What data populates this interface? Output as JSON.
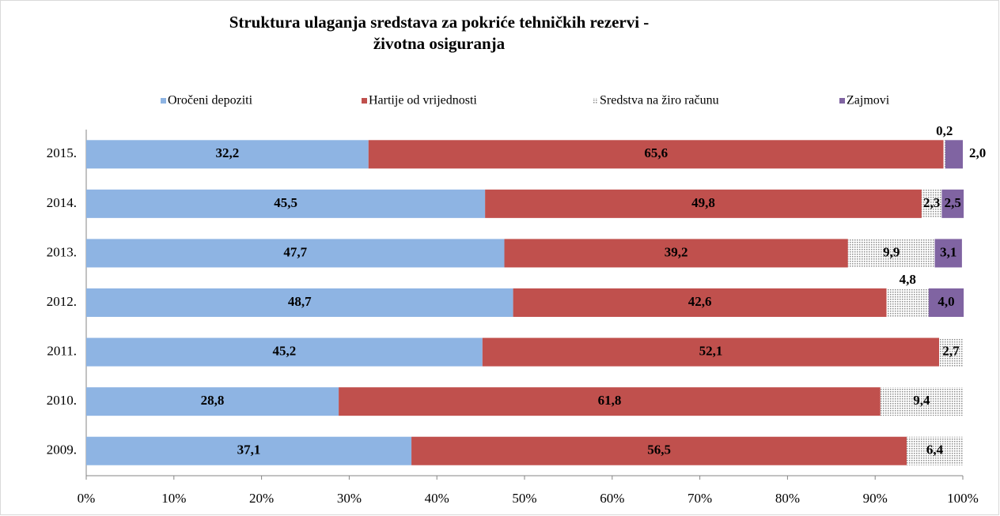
{
  "chart_data": {
    "type": "stacked_bar_horizontal",
    "title": "Struktura  ulaganja  sredstava za pokriće  tehničkih  rezervi -",
    "subtitle": "životna osiguranja",
    "categories": [
      "2015.",
      "2014.",
      "2013.",
      "2012.",
      "2011.",
      "2010.",
      "2009."
    ],
    "series": [
      {
        "name": "Oročeni depoziti",
        "color": "#8eb4e3",
        "values": [
          32.2,
          45.5,
          47.7,
          48.7,
          45.2,
          28.8,
          37.1
        ],
        "value_labels": [
          "32,2",
          "45,5",
          "47,7",
          "48,7",
          "45,2",
          "28,8",
          "37,1"
        ]
      },
      {
        "name": "Hartije od vrijednosti",
        "color": "#c0504d",
        "values": [
          65.6,
          49.8,
          39.2,
          42.6,
          52.1,
          61.8,
          56.5
        ],
        "value_labels": [
          "65,6",
          "49,8",
          "39,2",
          "42,6",
          "52,1",
          "61,8",
          "56,5"
        ]
      },
      {
        "name": "Sredstva na žiro računu",
        "color": "#a6a6a6",
        "pattern": "dots",
        "values": [
          0.2,
          2.3,
          9.9,
          4.8,
          2.7,
          9.4,
          6.4
        ],
        "value_labels": [
          "0,2",
          "2,3",
          "9,9",
          "4,8",
          "2,7",
          "9,4",
          "6,4"
        ]
      },
      {
        "name": "Zajmovi",
        "color": "#8064a2",
        "values": [
          2.0,
          2.5,
          3.1,
          4.0,
          null,
          null,
          null
        ],
        "value_labels": [
          "2,0",
          "2,5",
          "3,1",
          "4,0",
          null,
          null,
          null
        ]
      }
    ],
    "xlim": [
      0,
      100
    ],
    "xticks": [
      {
        "value": 0,
        "label": "0%"
      },
      {
        "value": 10,
        "label": "10%"
      },
      {
        "value": 20,
        "label": "20%"
      },
      {
        "value": 30,
        "label": "30%"
      },
      {
        "value": 40,
        "label": "40%"
      },
      {
        "value": 50,
        "label": "50%"
      },
      {
        "value": 60,
        "label": "60%"
      },
      {
        "value": 70,
        "label": "70%"
      },
      {
        "value": 80,
        "label": "80%"
      },
      {
        "value": 90,
        "label": "90%"
      },
      {
        "value": 100,
        "label": "100%"
      }
    ],
    "legend": "top"
  }
}
